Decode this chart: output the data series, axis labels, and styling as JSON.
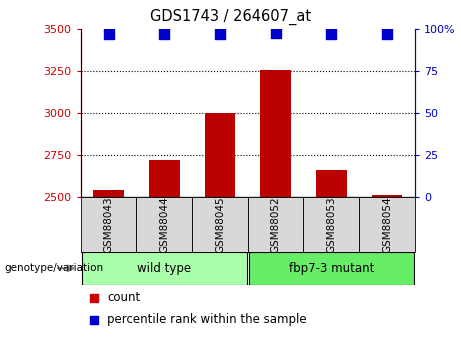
{
  "title": "GDS1743 / 264607_at",
  "samples": [
    "GSM88043",
    "GSM88044",
    "GSM88045",
    "GSM88052",
    "GSM88053",
    "GSM88054"
  ],
  "counts": [
    2540,
    2720,
    3000,
    3255,
    2660,
    2510
  ],
  "percentile_ranks": [
    97,
    97,
    97,
    98,
    97,
    97
  ],
  "groups": [
    {
      "label": "wild type",
      "indices": [
        0,
        1,
        2
      ],
      "color": "#aaffaa"
    },
    {
      "label": "fbp7-3 mutant",
      "indices": [
        3,
        4,
        5
      ],
      "color": "#66ee66"
    }
  ],
  "ylim_left": [
    2500,
    3500
  ],
  "yticks_left": [
    2500,
    2750,
    3000,
    3250,
    3500
  ],
  "ylim_right": [
    0,
    100
  ],
  "yticks_right": [
    0,
    25,
    50,
    75,
    100
  ],
  "bar_color": "#bb0000",
  "dot_color": "#0000cc",
  "bar_width": 0.55,
  "dot_size": 45,
  "col_bg_color": "#d8d8d8",
  "plot_bg_color": "#ffffff",
  "left_tick_color": "#cc0000",
  "right_tick_color": "#0000cc",
  "legend_count_color": "#cc0000",
  "legend_pct_color": "#0000cc",
  "genotype_label": "genotype/variation",
  "legend_count_label": "count",
  "legend_pct_label": "percentile rank within the sample"
}
